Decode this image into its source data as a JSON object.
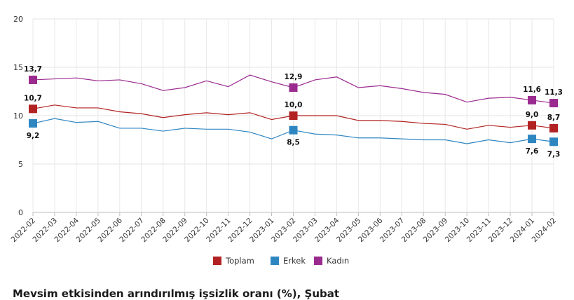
{
  "chart_data": {
    "type": "line",
    "title": "",
    "xlabel": "",
    "ylabel": "",
    "ylim": [
      0,
      20
    ],
    "yticks": [
      0,
      5,
      10,
      15,
      20
    ],
    "grid": true,
    "legend_position": "bottom-center",
    "x": [
      "2022-02",
      "2022-03",
      "2022-04",
      "2022-05",
      "2022-06",
      "2022-07",
      "2022-08",
      "2022-09",
      "2022-10",
      "2022-11",
      "2022-12",
      "2023-01",
      "2023-02",
      "2023-03",
      "2023-04",
      "2023-05",
      "2023-06",
      "2023-07",
      "2023-08",
      "2023-09",
      "2023-10",
      "2023-11",
      "2023-12",
      "2024-01",
      "2024-02"
    ],
    "series": [
      {
        "name": "Toplam",
        "color": "#b22222",
        "values": [
          10.7,
          11.1,
          10.8,
          10.8,
          10.4,
          10.2,
          9.8,
          10.1,
          10.3,
          10.1,
          10.3,
          9.6,
          10.0,
          10.0,
          10.0,
          9.5,
          9.5,
          9.4,
          9.2,
          9.1,
          8.6,
          9.0,
          8.8,
          9.0,
          8.7
        ]
      },
      {
        "name": "Erkek",
        "color": "#2e86c1",
        "values": [
          9.2,
          9.7,
          9.3,
          9.4,
          8.7,
          8.7,
          8.4,
          8.7,
          8.6,
          8.6,
          8.3,
          7.6,
          8.5,
          8.1,
          8.0,
          7.7,
          7.7,
          7.6,
          7.5,
          7.5,
          7.1,
          7.5,
          7.2,
          7.6,
          7.3
        ]
      },
      {
        "name": "Kadın",
        "color": "#9b2a8f",
        "values": [
          13.7,
          13.8,
          13.9,
          13.6,
          13.7,
          13.3,
          12.6,
          12.9,
          13.6,
          13.0,
          14.2,
          13.5,
          12.9,
          13.7,
          14.0,
          12.9,
          13.1,
          12.8,
          12.4,
          12.2,
          11.4,
          11.8,
          11.9,
          11.6,
          11.3
        ]
      }
    ],
    "markers": [
      {
        "series": 0,
        "index": 0,
        "label": "10,7",
        "pos": "above"
      },
      {
        "series": 0,
        "index": 12,
        "label": "10,0",
        "pos": "above"
      },
      {
        "series": 0,
        "index": 23,
        "label": "9,0",
        "pos": "above"
      },
      {
        "series": 0,
        "index": 24,
        "label": "8,7",
        "pos": "above"
      },
      {
        "series": 1,
        "index": 0,
        "label": "9,2",
        "pos": "below"
      },
      {
        "series": 1,
        "index": 12,
        "label": "8,5",
        "pos": "below"
      },
      {
        "series": 1,
        "index": 23,
        "label": "7,6",
        "pos": "below"
      },
      {
        "series": 1,
        "index": 24,
        "label": "7,3",
        "pos": "below"
      },
      {
        "series": 2,
        "index": 0,
        "label": "13,7",
        "pos": "above"
      },
      {
        "series": 2,
        "index": 12,
        "label": "12,9",
        "pos": "above"
      },
      {
        "series": 2,
        "index": 23,
        "label": "11,6",
        "pos": "above"
      },
      {
        "series": 2,
        "index": 24,
        "label": "11,3",
        "pos": "above"
      }
    ]
  },
  "footer": {
    "text": "Mevsim etkisinden arındırılmış işsizlik oranı (%), Şubat"
  }
}
